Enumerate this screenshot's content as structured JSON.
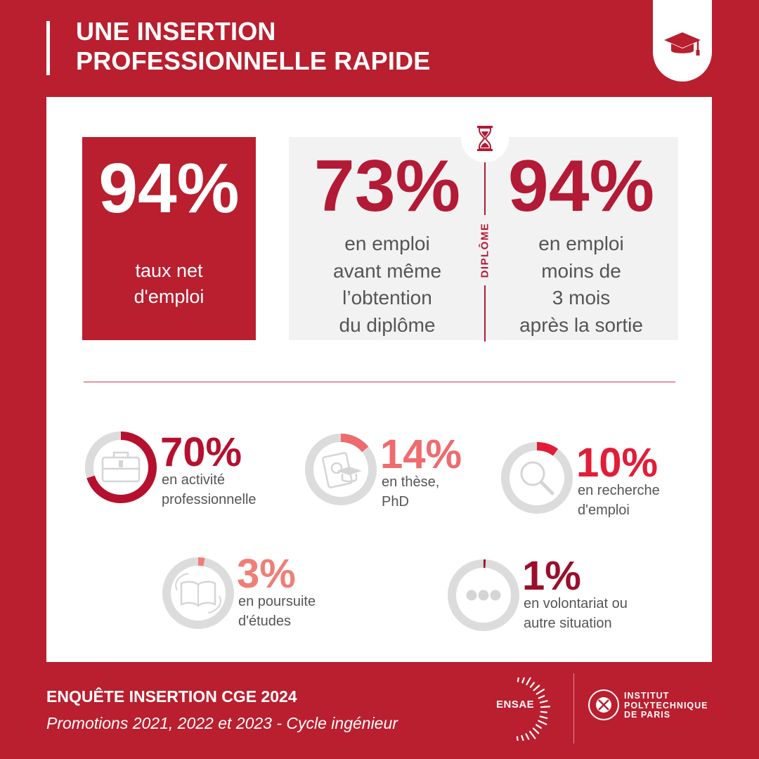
{
  "header": {
    "title_line1": "UNE INSERTION",
    "title_line2": "PROFESSIONNELLE RAPIDE"
  },
  "highlights": {
    "net_rate": {
      "value": "94%",
      "label_line1": "taux net",
      "label_line2": "d'emploi"
    },
    "before_diploma": {
      "value": "73%",
      "label_lines": [
        "en emploi",
        "avant même",
        "l’obtention",
        "du diplôme"
      ]
    },
    "after_exit": {
      "value": "94%",
      "label_lines": [
        "en emploi",
        "moins de",
        "3 mois",
        "après la sortie"
      ]
    },
    "divider_label": "DIPLÔME"
  },
  "chart_data": {
    "type": "pie",
    "variant": "donut",
    "items": [
      {
        "value": 70,
        "display": "70%",
        "label_lines": [
          "en activité",
          "professionnelle"
        ],
        "color": "#b5112f",
        "icon": "briefcase-icon"
      },
      {
        "value": 14,
        "display": "14%",
        "label_lines": [
          "en thèse,",
          "PhD"
        ],
        "color": "#ee6b6f",
        "icon": "thesis-icon"
      },
      {
        "value": 10,
        "display": "10%",
        "label_lines": [
          "en recherche",
          "d'emploi"
        ],
        "color": "#e11d37",
        "icon": "magnifier-icon"
      },
      {
        "value": 3,
        "display": "3%",
        "label_lines": [
          "en poursuite",
          "d'études"
        ],
        "color": "#ee7f78",
        "icon": "open-book-icon"
      },
      {
        "value": 1,
        "display": "1%",
        "label_lines": [
          "en volontariat ou",
          "autre situation"
        ],
        "color": "#9a0f2c",
        "icon": "ellipsis-icon"
      }
    ],
    "track_color": "#dcdcdc"
  },
  "footer": {
    "survey": "ENQUÊTE INSERTION CGE 2024",
    "cohort": "Promotions 2021, 2022 et 2023 - Cycle ingénieur"
  },
  "logos": {
    "ensae": "ENSAE",
    "ip_line1": "INSTITUT",
    "ip_line2": "POLYTECHNIQUE",
    "ip_line3": "DE PARIS"
  },
  "colors": {
    "brand": "#b91f2e",
    "accent": "#b31a35",
    "panel": "#ffffff",
    "grey_box": "#f2f2f2"
  }
}
